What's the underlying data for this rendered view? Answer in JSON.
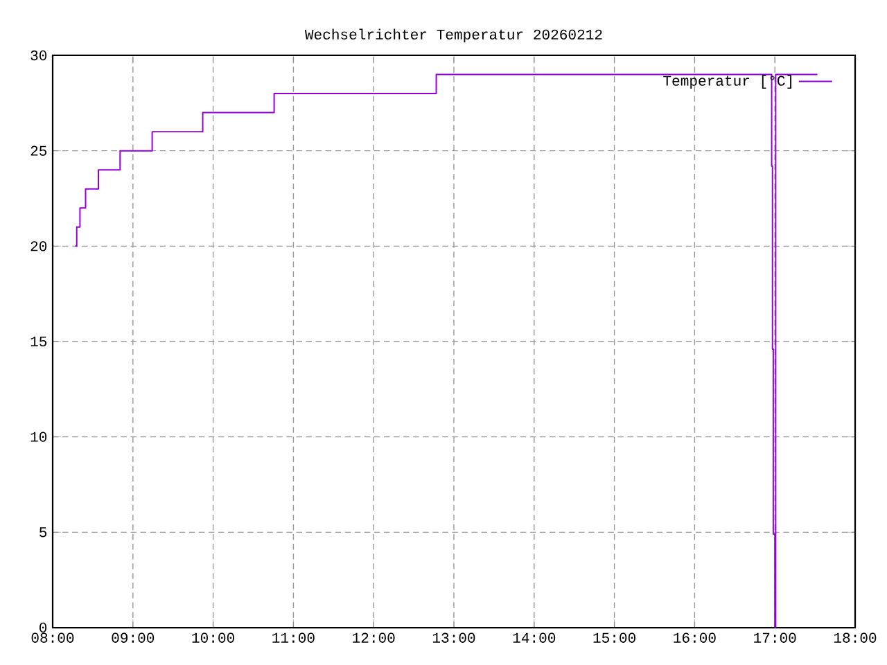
{
  "chart_data": {
    "type": "step",
    "title": "Wechselrichter Temperatur 20260212",
    "x": [
      8.28,
      8.3,
      8.34,
      8.41,
      8.57,
      8.84,
      9.24,
      9.87,
      10.76,
      12.78,
      16.96,
      16.97,
      16.98,
      17.0,
      17.01,
      17.53
    ],
    "series": [
      {
        "name": "Temperatur [°C]",
        "color": "#9400d3",
        "values": [
          20,
          21,
          22,
          23,
          24,
          25,
          26,
          27,
          28,
          29,
          24.2,
          14.6,
          4.9,
          0,
          29,
          29
        ]
      }
    ],
    "xlim": [
      8,
      18
    ],
    "xticks": [
      {
        "value": 8,
        "label": "08:00"
      },
      {
        "value": 9,
        "label": "09:00"
      },
      {
        "value": 10,
        "label": "10:00"
      },
      {
        "value": 11,
        "label": "11:00"
      },
      {
        "value": 12,
        "label": "12:00"
      },
      {
        "value": 13,
        "label": "13:00"
      },
      {
        "value": 14,
        "label": "14:00"
      },
      {
        "value": 15,
        "label": "15:00"
      },
      {
        "value": 16,
        "label": "16:00"
      },
      {
        "value": 17,
        "label": "17:00"
      },
      {
        "value": 18,
        "label": "18:00"
      }
    ],
    "ylim": [
      0,
      30
    ],
    "yticks": [
      0,
      5,
      10,
      15,
      20,
      25,
      30
    ],
    "grid": true,
    "legend": "top right",
    "marker": "none",
    "line_style": "solid"
  }
}
